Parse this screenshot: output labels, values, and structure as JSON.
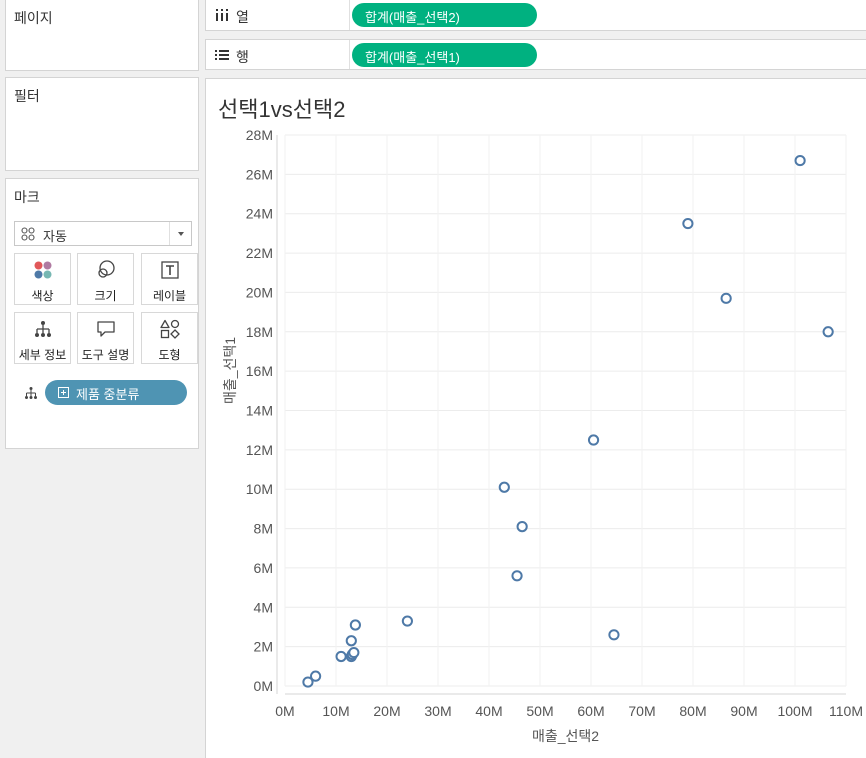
{
  "panels": {
    "pages_title": "페이지",
    "filters_title": "필터",
    "marks_title": "마크"
  },
  "marks": {
    "type_label": "자동",
    "buttons": [
      {
        "name": "color",
        "label": "색상",
        "icon": "color-dots-icon"
      },
      {
        "name": "size",
        "label": "크기",
        "icon": "size-circles-icon"
      },
      {
        "name": "label",
        "label": "레이블",
        "icon": "text-t-icon"
      },
      {
        "name": "detail",
        "label": "세부 정보",
        "icon": "detail-tree-icon"
      },
      {
        "name": "tooltip",
        "label": "도구 설명",
        "icon": "speech-bubble-icon"
      },
      {
        "name": "shape",
        "label": "도형",
        "icon": "shapes-icon"
      }
    ],
    "detail_field": "제품 중분류"
  },
  "shelves": {
    "columns_label": "열",
    "columns_pill": "합계(매출_선택2)",
    "rows_label": "행",
    "rows_pill": "합계(매출_선택1)"
  },
  "colors": {
    "measure_pill": "#00b180",
    "dimension_pill": "#4f94b3",
    "marks": "#4e79a7"
  },
  "chart_data": {
    "type": "scatter",
    "title": "선택1vs선택2",
    "xlabel": "매출_선택2",
    "ylabel": "매출_선택1",
    "xlim": [
      0,
      110
    ],
    "ylim": [
      0,
      28
    ],
    "x_ticks": [
      0,
      10,
      20,
      30,
      40,
      50,
      60,
      70,
      80,
      90,
      100,
      110
    ],
    "x_tick_labels": [
      "0M",
      "10M",
      "20M",
      "30M",
      "40M",
      "50M",
      "60M",
      "70M",
      "80M",
      "90M",
      "100M",
      "110M"
    ],
    "y_ticks": [
      0,
      2,
      4,
      6,
      8,
      10,
      12,
      14,
      16,
      18,
      20,
      22,
      24,
      26,
      28
    ],
    "y_tick_labels": [
      "0M",
      "2M",
      "4M",
      "6M",
      "8M",
      "10M",
      "12M",
      "14M",
      "16M",
      "18M",
      "20M",
      "22M",
      "24M",
      "26M",
      "28M"
    ],
    "grid": true,
    "points": [
      {
        "x": 4.5,
        "y": 0.2
      },
      {
        "x": 6.0,
        "y": 0.5
      },
      {
        "x": 11.0,
        "y": 1.5
      },
      {
        "x": 13.0,
        "y": 1.5
      },
      {
        "x": 13.2,
        "y": 1.6
      },
      {
        "x": 13.5,
        "y": 1.7
      },
      {
        "x": 13.0,
        "y": 2.3
      },
      {
        "x": 13.8,
        "y": 3.1
      },
      {
        "x": 24.0,
        "y": 3.3
      },
      {
        "x": 43.0,
        "y": 10.1
      },
      {
        "x": 45.5,
        "y": 5.6
      },
      {
        "x": 46.5,
        "y": 8.1
      },
      {
        "x": 60.5,
        "y": 12.5
      },
      {
        "x": 64.5,
        "y": 2.6
      },
      {
        "x": 79.0,
        "y": 23.5
      },
      {
        "x": 86.5,
        "y": 19.7
      },
      {
        "x": 101.0,
        "y": 26.7
      },
      {
        "x": 106.5,
        "y": 18.0
      }
    ]
  }
}
